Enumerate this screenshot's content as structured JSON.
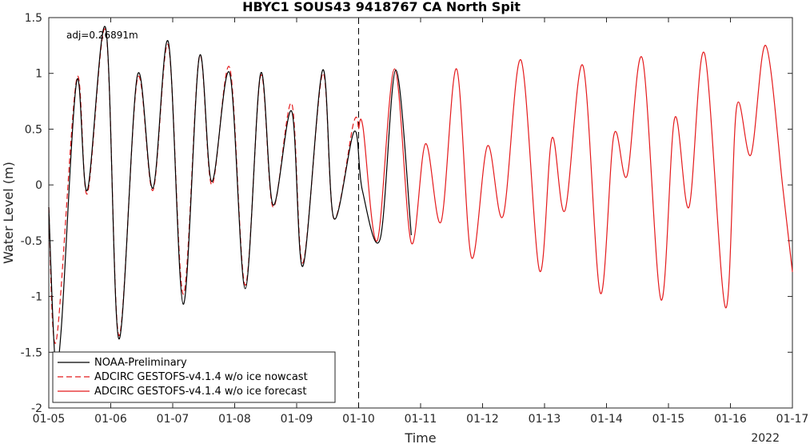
{
  "chart_data": {
    "type": "line",
    "title": "HBYC1 SOUS43 9418767 CA North Spit",
    "xlabel": "Time",
    "ylabel": "Water Level (m)",
    "year_label": "2022",
    "annotation": "adj=0.26891m",
    "xlim": [
      5,
      17
    ],
    "ylim": [
      -2,
      1.5
    ],
    "x_ticks": [
      5,
      6,
      7,
      8,
      9,
      10,
      11,
      12,
      13,
      14,
      15,
      16,
      17
    ],
    "x_tick_labels": [
      "01-05",
      "01-06",
      "01-07",
      "01-08",
      "01-09",
      "01-10",
      "01-11",
      "01-12",
      "01-13",
      "01-14",
      "01-15",
      "01-16",
      "01-17"
    ],
    "y_ticks": [
      -2,
      -1.5,
      -1,
      -0.5,
      0,
      0.5,
      1,
      1.5
    ],
    "y_tick_labels": [
      "-2",
      "-1.5",
      "-1",
      "-0.5",
      "0",
      "0.5",
      "1",
      "1.5"
    ],
    "nowcast_forecast_boundary_x": 10,
    "grid": false,
    "legend_position": "bottom-left",
    "series": [
      {
        "name": "NOAA-Preliminary",
        "color": "#000000",
        "style": "solid",
        "x": [
          5.0,
          5.1,
          5.2,
          5.45,
          5.62,
          5.92,
          6.13,
          6.43,
          6.68,
          6.93,
          7.17,
          7.43,
          7.63,
          7.92,
          8.17,
          8.42,
          8.62,
          8.92,
          9.1,
          9.42,
          9.6,
          9.93,
          10.06,
          10.35,
          10.6,
          10.85
        ],
        "values": [
          -0.2,
          -1.55,
          -1.3,
          0.93,
          -0.05,
          1.4,
          -1.38,
          0.98,
          -0.03,
          1.28,
          -1.07,
          1.15,
          0.03,
          1.0,
          -0.93,
          1.0,
          -0.18,
          0.66,
          -0.73,
          1.03,
          -0.3,
          0.48,
          -0.05,
          -0.48,
          1.03,
          -0.45
        ]
      },
      {
        "name": "ADCIRC GESTOFS-v4.1.4 w/o ice nowcast",
        "color": "#e41a1c",
        "style": "dashed",
        "x": [
          5.0,
          5.12,
          5.45,
          5.62,
          5.92,
          6.13,
          6.43,
          6.68,
          6.93,
          7.17,
          7.43,
          7.63,
          7.92,
          8.17,
          8.42,
          8.62,
          8.92,
          9.1,
          9.42,
          9.6,
          9.92,
          10.0
        ],
        "values": [
          -0.2,
          -1.4,
          0.95,
          -0.08,
          1.38,
          -1.35,
          0.95,
          -0.05,
          1.25,
          -0.98,
          1.15,
          0.0,
          1.05,
          -0.9,
          0.98,
          -0.2,
          0.73,
          -0.7,
          1.0,
          -0.3,
          0.56,
          0.5
        ]
      },
      {
        "name": "ADCIRC GESTOFS-v4.1.4 w/o ice forecast",
        "color": "#e41a1c",
        "style": "solid",
        "x": [
          10.0,
          10.07,
          10.3,
          10.58,
          10.85,
          11.08,
          11.33,
          11.58,
          11.82,
          12.08,
          12.33,
          12.62,
          12.92,
          13.12,
          13.33,
          13.62,
          13.9,
          14.12,
          14.33,
          14.58,
          14.88,
          15.1,
          15.33,
          15.58,
          15.92,
          16.1,
          16.33,
          16.57,
          16.85,
          17.0
        ],
        "values": [
          0.5,
          0.52,
          -0.5,
          1.04,
          -0.52,
          0.37,
          -0.33,
          1.04,
          -0.65,
          0.35,
          -0.28,
          1.12,
          -0.77,
          0.42,
          -0.23,
          1.07,
          -0.97,
          0.45,
          0.08,
          1.13,
          -1.03,
          0.6,
          -0.2,
          1.18,
          -1.1,
          0.7,
          0.27,
          1.25,
          -0.05,
          -0.78
        ]
      }
    ]
  }
}
